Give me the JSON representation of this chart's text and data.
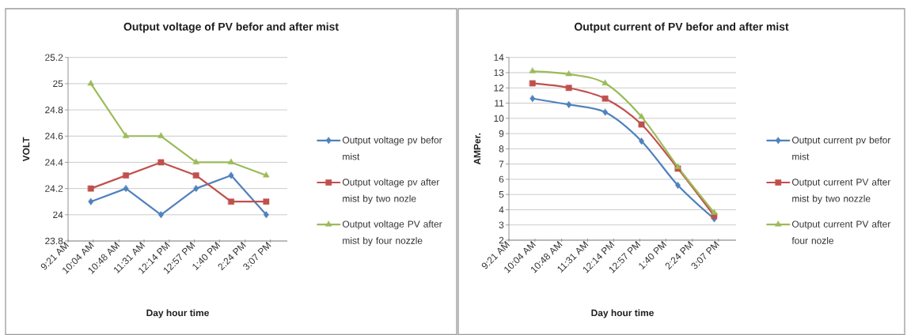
{
  "chart_data": [
    {
      "type": "line",
      "title": "Output voltage of PV befor and after mist",
      "xlabel": "Day hour time",
      "ylabel": "VOLT",
      "x": [
        10,
        11,
        12,
        13,
        14,
        15
      ],
      "series": [
        {
          "name": "Output voltage pv befor mist",
          "color": "#4f81bd",
          "marker": "diamond",
          "values": [
            24.1,
            24.2,
            24,
            24.2,
            24.3,
            24
          ]
        },
        {
          "name": "Output voltage pv after mist by two nozle",
          "color": "#c0504d",
          "marker": "square",
          "values": [
            24.2,
            24.3,
            24.4,
            24.3,
            24.1,
            24.1
          ]
        },
        {
          "name": "Output voltage PV after mist by four nozzle",
          "color": "#9bbb59",
          "marker": "triangle",
          "values": [
            25,
            24.6,
            24.6,
            24.4,
            24.4,
            24.3
          ]
        }
      ],
      "xlim": [
        9.35,
        15.6
      ],
      "xticks": [
        {
          "value": 9.35,
          "label": "9:21 AM"
        },
        {
          "value": 10.0667,
          "label": "10:04 AM"
        },
        {
          "value": 10.8,
          "label": "10:48 AM"
        },
        {
          "value": 11.5167,
          "label": "11:31 AM"
        },
        {
          "value": 12.2333,
          "label": "12:14 PM"
        },
        {
          "value": 12.95,
          "label": "12:57 PM"
        },
        {
          "value": 13.6667,
          "label": "1:40 PM"
        },
        {
          "value": 14.4,
          "label": "2:24 PM"
        },
        {
          "value": 15.1167,
          "label": "3:07 PM"
        }
      ],
      "ylim": [
        23.8,
        25.2
      ],
      "yticks": [
        23.8,
        24,
        24.2,
        24.4,
        24.6,
        24.8,
        25,
        25.2
      ],
      "grid": "y",
      "legend": "right",
      "line_style": "solid"
    },
    {
      "type": "line",
      "title": "Output current of PV befor and after mist",
      "xlabel": "Day hour time",
      "ylabel": "AMPer.",
      "x": [
        10,
        11,
        12,
        13,
        14,
        15
      ],
      "series": [
        {
          "name": "Output current pv befor mist",
          "color": "#4f81bd",
          "marker": "diamond",
          "values": [
            11.3,
            10.9,
            10.4,
            8.5,
            5.6,
            3.4
          ]
        },
        {
          "name": "Output current PV after mist by two nozzle",
          "color": "#c0504d",
          "marker": "square",
          "values": [
            12.3,
            12,
            11.3,
            9.6,
            6.7,
            3.6
          ]
        },
        {
          "name": "Output current PV after four nozle",
          "color": "#9bbb59",
          "marker": "triangle",
          "values": [
            13.1,
            12.9,
            12.3,
            10.1,
            6.8,
            3.8
          ]
        }
      ],
      "xlim": [
        9.35,
        15.6
      ],
      "xticks": [
        {
          "value": 9.35,
          "label": "9:21 AM"
        },
        {
          "value": 10.0667,
          "label": "10:04 AM"
        },
        {
          "value": 10.8,
          "label": "10:48 AM"
        },
        {
          "value": 11.5167,
          "label": "11:31 AM"
        },
        {
          "value": 12.2333,
          "label": "12:14 PM"
        },
        {
          "value": 12.95,
          "label": "12:57 PM"
        },
        {
          "value": 13.6667,
          "label": "1:40 PM"
        },
        {
          "value": 14.4,
          "label": "2:24 PM"
        },
        {
          "value": 15.1167,
          "label": "3:07 PM"
        }
      ],
      "ylim": [
        2,
        14
      ],
      "yticks": [
        2,
        3,
        4,
        5,
        6,
        7,
        8,
        9,
        10,
        11,
        12,
        13,
        14
      ],
      "grid": "y",
      "legend": "right",
      "line_style": "solid"
    }
  ]
}
